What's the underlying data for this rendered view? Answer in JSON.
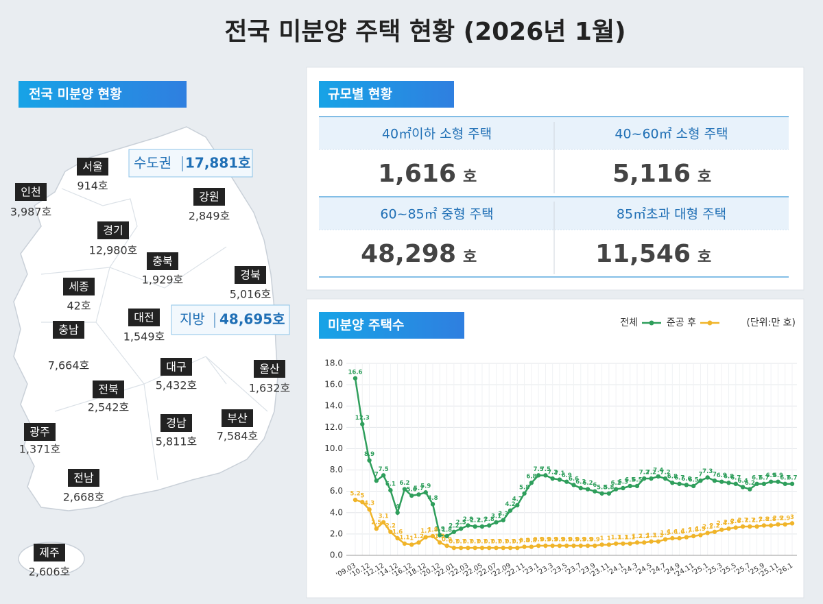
{
  "title": "전국 미분양 주택 현황 (2026년 1월)",
  "map": {
    "title": "전국 미분양 현황",
    "regions": [
      {
        "name": "서울",
        "value": "914호"
      },
      {
        "name": "인천",
        "value": "3,987호"
      },
      {
        "name": "강원",
        "value": "2,849호"
      },
      {
        "name": "경기",
        "value": "12,980호"
      },
      {
        "name": "충북",
        "value": "1,929호"
      },
      {
        "name": "경북",
        "value": "5,016호"
      },
      {
        "name": "세종",
        "value": "42호"
      },
      {
        "name": "대전",
        "value": "1,549호"
      },
      {
        "name": "충남",
        "value": "7,664호"
      },
      {
        "name": "대구",
        "value": "5,432호"
      },
      {
        "name": "울산",
        "value": "1,632호"
      },
      {
        "name": "전북",
        "value": "2,542호"
      },
      {
        "name": "부산",
        "value": "7,584호"
      },
      {
        "name": "경남",
        "value": "5,811호"
      },
      {
        "name": "광주",
        "value": "1,371호"
      },
      {
        "name": "전남",
        "value": "2,668호"
      },
      {
        "name": "제주",
        "value": "2,606호"
      }
    ],
    "summary": [
      {
        "label": "수도권",
        "value": "17,881호"
      },
      {
        "label": "지방",
        "value": "48,695호"
      }
    ]
  },
  "size": {
    "title": "규모별 현황",
    "cells": [
      {
        "label": "40㎡이하 소형 주택",
        "value": "1,616",
        "unit": "호"
      },
      {
        "label": "40~60㎡ 소형 주택",
        "value": "5,116",
        "unit": "호"
      },
      {
        "label": "60~85㎡ 중형 주택",
        "value": "48,298",
        "unit": "호"
      },
      {
        "label": "85㎡초과 대형 주택",
        "value": "11,546",
        "unit": "호"
      }
    ]
  },
  "chart_data": {
    "type": "line",
    "title": "미분양 주택수",
    "unit_note": "(단위:만 호)",
    "categories": [
      "'09.03",
      null,
      "'10.12",
      null,
      "'12.12",
      null,
      "'14.12",
      null,
      "'16.12",
      null,
      "'18.12",
      null,
      "'20.12",
      null,
      "'22.01",
      null,
      "'22.03",
      null,
      "'22.05",
      null,
      "'22.07",
      null,
      "'22.09",
      null,
      "'22.11",
      null,
      "'23.1",
      null,
      "'23.3",
      null,
      "'23.5",
      null,
      "'23.7",
      null,
      "'23.9",
      null,
      "'23.11",
      null,
      "'24.1",
      null,
      "'24.3",
      null,
      "'24.5",
      null,
      "'24.7",
      null,
      "'24.9",
      null,
      "'24.11",
      null,
      "'25.1",
      null,
      "'25.3",
      null,
      "'25.5",
      null,
      "'25.7",
      null,
      "'25.9",
      null,
      "'25.11",
      null,
      "'26.1"
    ],
    "series": [
      {
        "name": "전체",
        "color": "#2e9e5b",
        "values": [
          16.6,
          12.3,
          8.9,
          7.0,
          7.5,
          6.1,
          4.0,
          6.2,
          5.6,
          5.7,
          5.9,
          4.8,
          1.9,
          1.8,
          2.2,
          2.5,
          2.8,
          2.7,
          2.7,
          2.8,
          3.1,
          3.3,
          4.2,
          4.7,
          5.8,
          6.8,
          7.5,
          7.5,
          7.2,
          7.1,
          6.9,
          6.6,
          6.3,
          6.2,
          6.0,
          5.8,
          5.8,
          6.2,
          6.3,
          6.5,
          6.5,
          7.2,
          7.2,
          7.4,
          7.2,
          6.8,
          6.7,
          6.6,
          6.5,
          7.0,
          7.3,
          7.0,
          6.9,
          6.8,
          6.7,
          6.4,
          6.2,
          6.7,
          6.7,
          6.9,
          6.9,
          6.7,
          6.7
        ]
      },
      {
        "name": "준공 후",
        "color": "#f0b429",
        "values": [
          5.2,
          5.0,
          4.3,
          2.5,
          3.1,
          2.2,
          1.6,
          1.1,
          1.0,
          1.2,
          1.7,
          1.8,
          1.2,
          0.9,
          0.7,
          0.7,
          0.7,
          0.7,
          0.7,
          0.7,
          0.7,
          0.7,
          0.7,
          0.7,
          0.8,
          0.8,
          0.9,
          0.9,
          0.9,
          0.9,
          0.9,
          0.9,
          0.9,
          0.9,
          0.9,
          1.0,
          1.0,
          1.1,
          1.1,
          1.1,
          1.2,
          1.2,
          1.3,
          1.3,
          1.5,
          1.6,
          1.6,
          1.7,
          1.8,
          1.9,
          2.1,
          2.2,
          2.4,
          2.5,
          2.6,
          2.7,
          2.7,
          2.7,
          2.8,
          2.8,
          2.9,
          2.9,
          3.0
        ]
      }
    ],
    "ylim": [
      0,
      18
    ],
    "yticks": [
      {
        "value": 0,
        "label": "0.0"
      },
      {
        "value": 2,
        "label": "2.0"
      },
      {
        "value": 4,
        "label": "4.0"
      },
      {
        "value": 6,
        "label": "6.0"
      },
      {
        "value": 8,
        "label": "8.0"
      },
      {
        "value": 10,
        "label": "10.0"
      },
      {
        "value": 12,
        "label": "12.0"
      },
      {
        "value": 14,
        "label": "14.0"
      },
      {
        "value": 16,
        "label": "16.0"
      },
      {
        "value": 18,
        "label": "18.0"
      }
    ],
    "grid": true
  }
}
